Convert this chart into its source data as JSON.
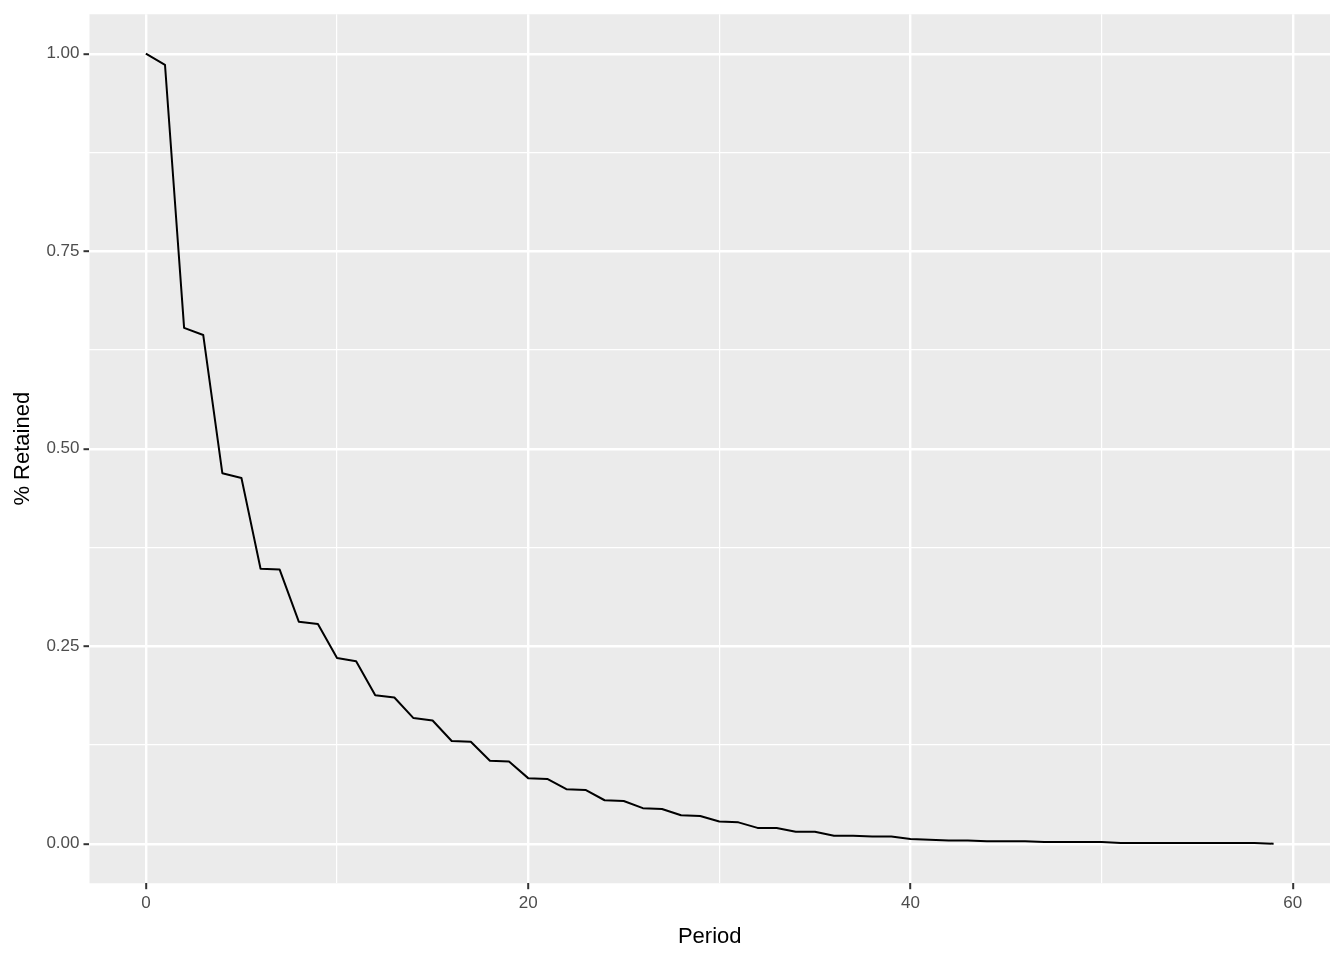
{
  "chart_data": {
    "type": "line",
    "xlabel": "Period",
    "ylabel": "% Retained",
    "x": [
      0,
      1,
      2,
      3,
      4,
      5,
      6,
      7,
      8,
      9,
      10,
      11,
      12,
      13,
      14,
      15,
      16,
      17,
      18,
      19,
      20,
      21,
      22,
      23,
      24,
      25,
      26,
      27,
      28,
      29,
      30,
      31,
      32,
      33,
      34,
      35,
      36,
      37,
      38,
      39,
      40,
      41,
      42,
      43,
      44,
      45,
      46,
      47,
      48,
      49,
      50,
      51,
      52,
      53,
      54,
      55,
      56,
      57,
      58,
      59
    ],
    "series": [
      {
        "color": "#000000",
        "values": [
          1.0,
          0.986,
          0.653,
          0.644,
          0.469,
          0.463,
          0.348,
          0.347,
          0.281,
          0.278,
          0.235,
          0.231,
          0.188,
          0.185,
          0.159,
          0.156,
          0.13,
          0.129,
          0.105,
          0.104,
          0.083,
          0.082,
          0.069,
          0.068,
          0.055,
          0.054,
          0.045,
          0.044,
          0.036,
          0.035,
          0.028,
          0.027,
          0.02,
          0.02,
          0.015,
          0.015,
          0.01,
          0.01,
          0.009,
          0.009,
          0.006,
          0.005,
          0.004,
          0.004,
          0.003,
          0.003,
          0.003,
          0.002,
          0.002,
          0.002,
          0.002,
          0.001,
          0.001,
          0.001,
          0.001,
          0.001,
          0.001,
          0.001,
          0.001,
          0.0
        ]
      }
    ],
    "xlim": [
      -2.95,
      61.95
    ],
    "xticks": [
      0,
      {
        "value": 10,
        "label": null
      },
      20,
      {
        "value": 30,
        "label": null
      },
      40,
      {
        "value": 50,
        "label": null
      },
      60
    ],
    "ylim": [
      -0.05,
      1.05
    ],
    "yticks": [
      {
        "value": 0,
        "label": "0.00"
      },
      {
        "value": 0.125,
        "label": null
      },
      {
        "value": 0.25,
        "label": "0.25"
      },
      {
        "value": 0.375,
        "label": null
      },
      {
        "value": 0.5,
        "label": "0.50"
      },
      {
        "value": 0.625,
        "label": null
      },
      {
        "value": 0.75,
        "label": "0.75"
      },
      {
        "value": 0.875,
        "label": null
      },
      {
        "value": 1,
        "label": "1.00"
      }
    ],
    "grid": true,
    "legend": false,
    "marker": "none",
    "line_style": "solid"
  }
}
